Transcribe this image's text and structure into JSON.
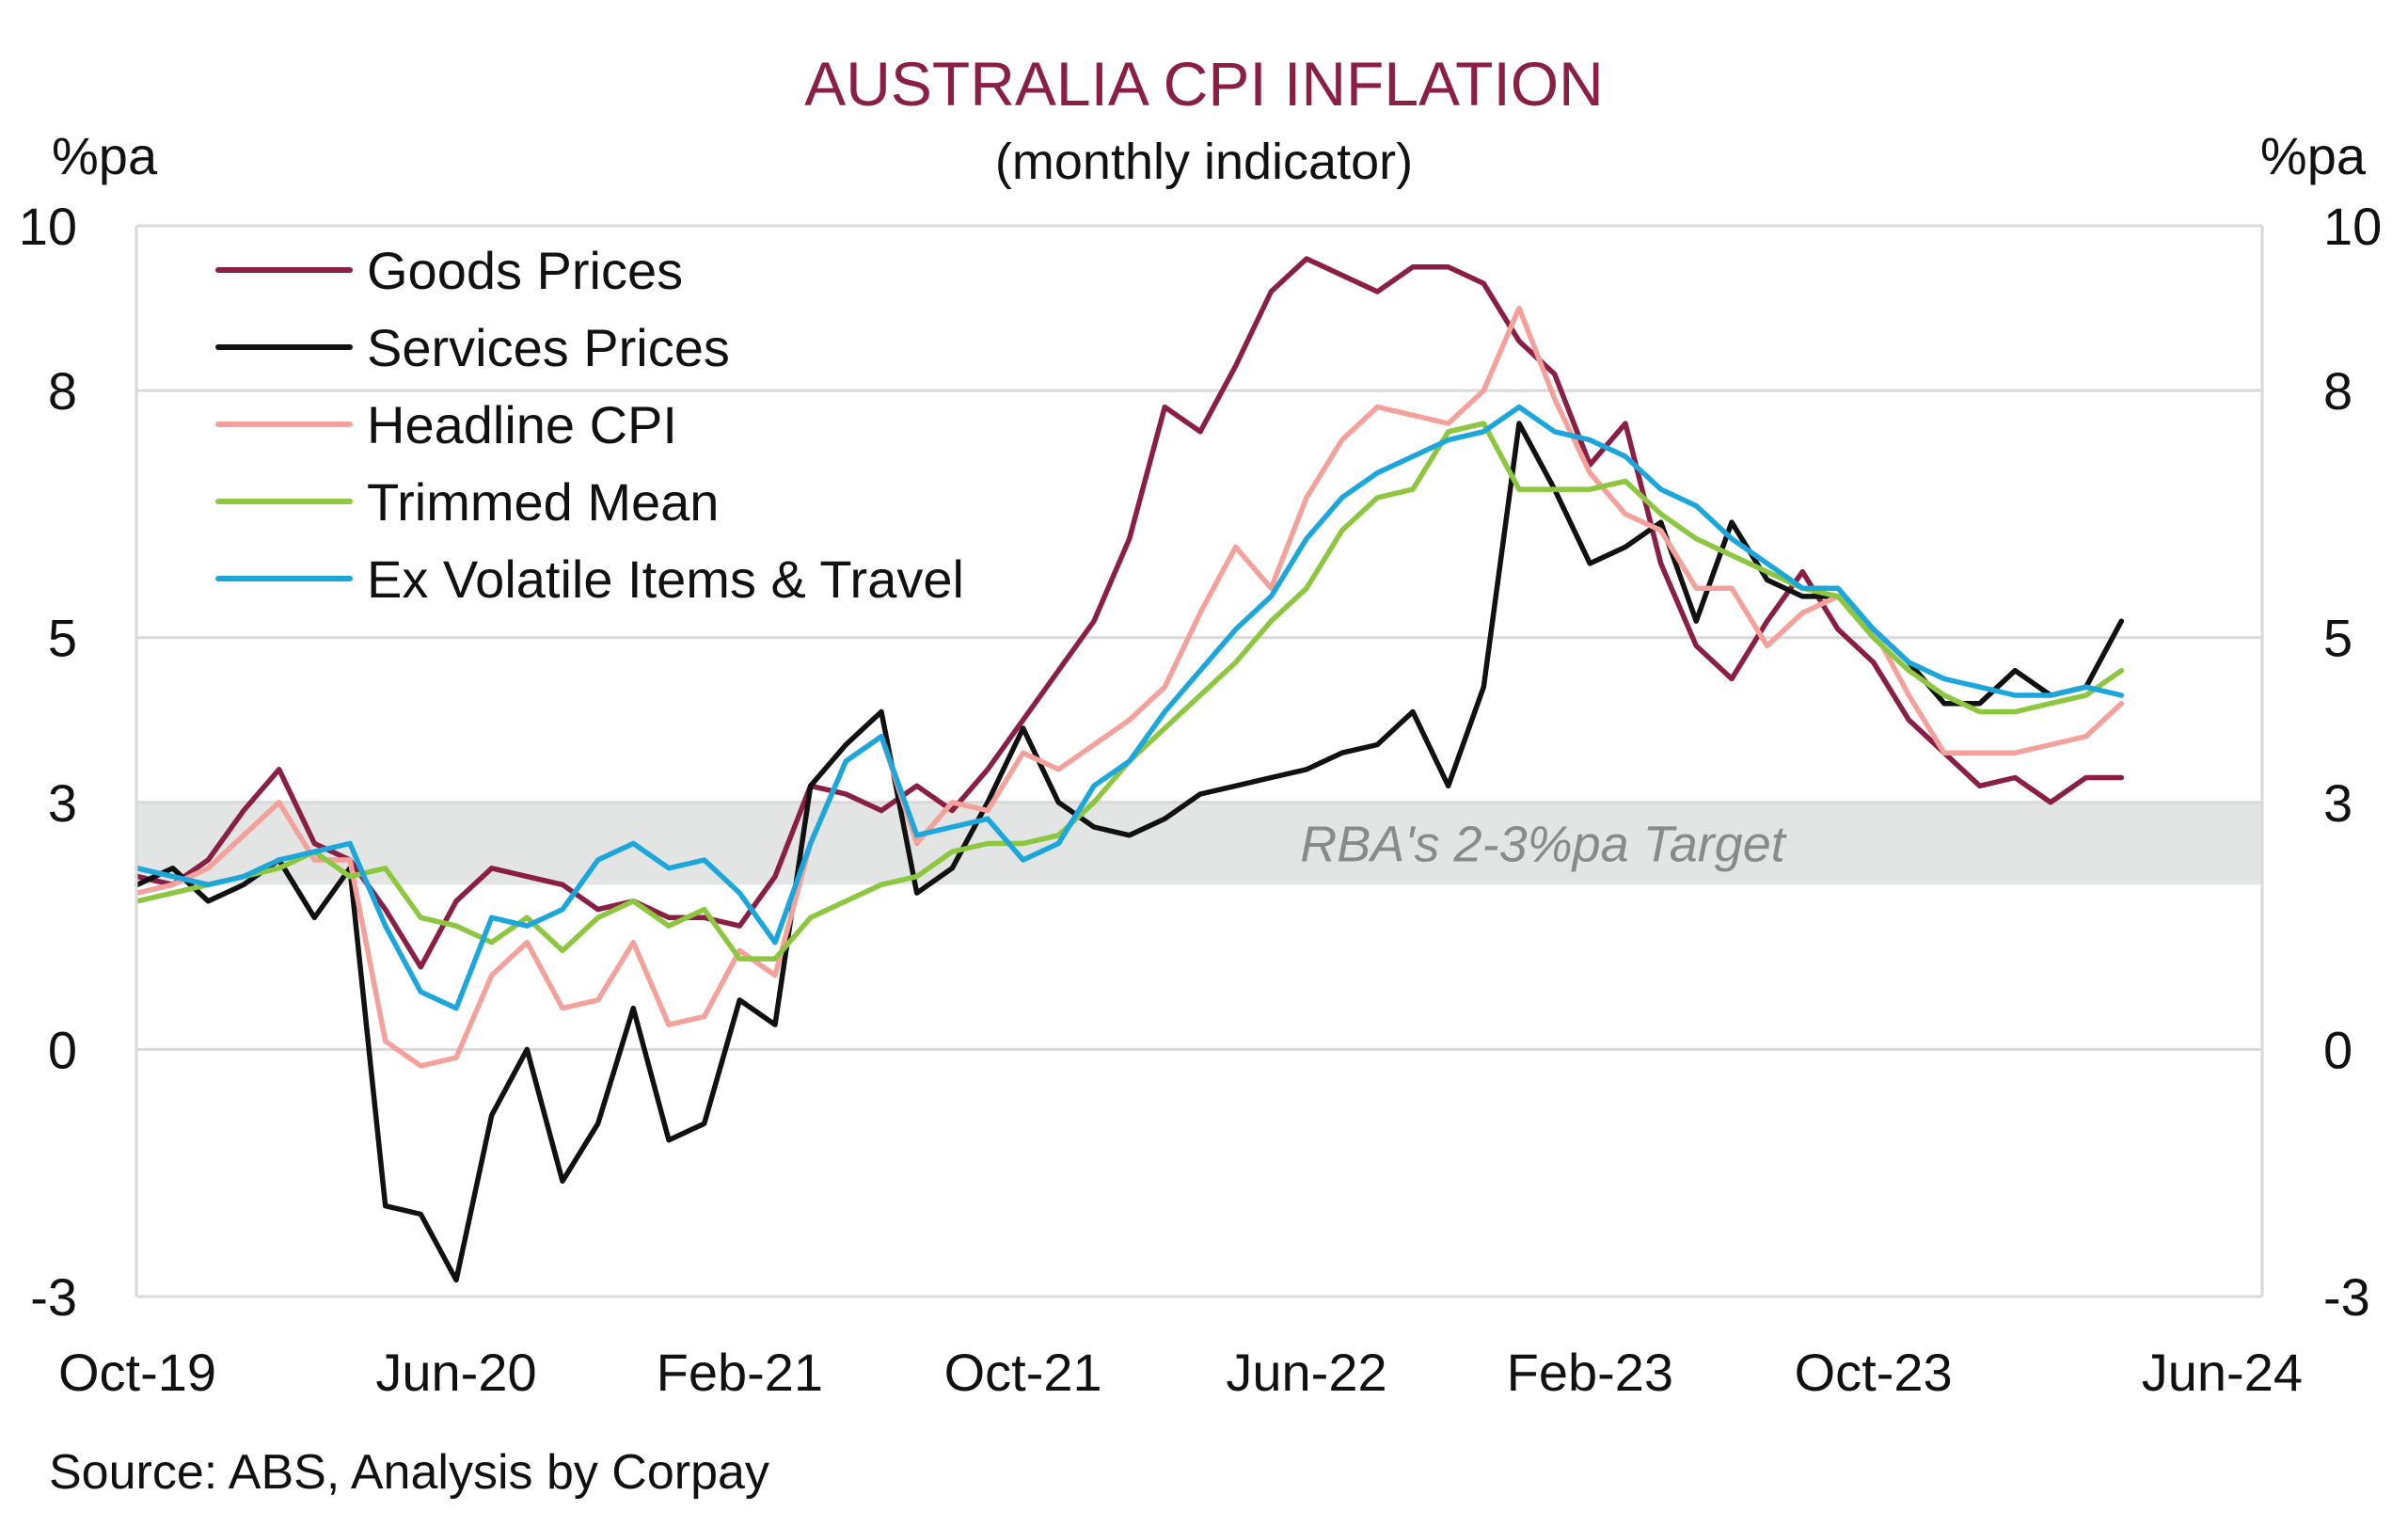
{
  "title": "AUSTRALIA CPI INFLATION",
  "subtitle": "(monthly indicator)",
  "source": "Source: ABS, Analysis by Corpay",
  "chart_data": {
    "type": "line",
    "y_unit_left": "%pa",
    "y_unit_right": "%pa",
    "ylim": [
      -3,
      10
    ],
    "y_ticks": [
      10,
      8,
      5,
      3,
      0,
      -3
    ],
    "x_tick_labels": [
      "Oct-19",
      "Jun-20",
      "Feb-21",
      "Oct-21",
      "Jun-22",
      "Feb-23",
      "Oct-23",
      "Jun-24"
    ],
    "x": [
      "Sep-19",
      "Oct-19",
      "Nov-19",
      "Dec-19",
      "Jan-20",
      "Feb-20",
      "Mar-20",
      "Apr-20",
      "May-20",
      "Jun-20",
      "Jul-20",
      "Aug-20",
      "Sep-20",
      "Oct-20",
      "Nov-20",
      "Dec-20",
      "Jan-21",
      "Feb-21",
      "Mar-21",
      "Apr-21",
      "May-21",
      "Jun-21",
      "Jul-21",
      "Aug-21",
      "Sep-21",
      "Oct-21",
      "Nov-21",
      "Dec-21",
      "Jan-22",
      "Feb-22",
      "Mar-22",
      "Apr-22",
      "May-22",
      "Jun-22",
      "Jul-22",
      "Aug-22",
      "Sep-22",
      "Oct-22",
      "Nov-22",
      "Dec-22",
      "Jan-23",
      "Feb-23",
      "Mar-23",
      "Apr-23",
      "May-23",
      "Jun-23",
      "Jul-23",
      "Aug-23",
      "Sep-23",
      "Oct-23",
      "Nov-23",
      "Dec-23",
      "Jan-24",
      "Feb-24",
      "Mar-24",
      "Apr-24",
      "May-24"
    ],
    "target_band": {
      "from": 2,
      "to": 3,
      "label": "RBA's 2-3%pa Target",
      "color": "#e3e5e4"
    },
    "legend_position": "top-left",
    "grid": "horizontal",
    "series": [
      {
        "name": "Goods Prices",
        "color": "#8b1e45",
        "values": [
          2.1,
          2.0,
          2.3,
          2.9,
          3.4,
          2.5,
          2.3,
          1.7,
          1.0,
          1.8,
          2.2,
          2.1,
          2.0,
          1.7,
          1.8,
          1.6,
          1.6,
          1.5,
          2.1,
          3.2,
          3.1,
          2.9,
          3.2,
          2.9,
          3.4,
          4.0,
          4.6,
          5.2,
          6.2,
          7.8,
          7.5,
          8.3,
          9.2,
          9.6,
          9.4,
          9.2,
          9.5,
          9.5,
          9.3,
          8.6,
          8.2,
          7.1,
          7.6,
          5.9,
          4.9,
          4.5,
          5.2,
          5.8,
          5.1,
          4.7,
          4.0,
          3.6,
          3.2,
          3.3,
          3.0,
          3.3,
          3.3
        ]
      },
      {
        "name": "Services Prices",
        "color": "#111111",
        "values": [
          2.0,
          2.2,
          1.8,
          2.0,
          2.3,
          1.6,
          2.2,
          -1.9,
          -2.0,
          -2.8,
          -0.8,
          0.0,
          -1.6,
          -0.9,
          0.5,
          -1.1,
          -0.9,
          0.6,
          0.3,
          3.2,
          3.7,
          4.1,
          1.9,
          2.2,
          3.0,
          3.9,
          3.0,
          2.7,
          2.6,
          2.8,
          3.1,
          3.2,
          3.3,
          3.4,
          3.6,
          3.7,
          4.1,
          3.2,
          4.4,
          7.6,
          6.8,
          5.9,
          6.1,
          6.4,
          5.2,
          6.4,
          5.7,
          5.5,
          5.5,
          5.1,
          4.7,
          4.2,
          4.2,
          4.6,
          4.3,
          4.4,
          5.2
        ]
      },
      {
        "name": "Headline CPI",
        "color": "#f4a19c",
        "values": [
          1.9,
          2.0,
          2.2,
          2.6,
          3.0,
          2.3,
          2.3,
          0.1,
          -0.2,
          -0.1,
          0.9,
          1.3,
          0.5,
          0.6,
          1.3,
          0.3,
          0.4,
          1.2,
          0.9,
          2.5,
          3.5,
          3.8,
          2.5,
          3.0,
          2.9,
          3.6,
          3.4,
          3.7,
          4.0,
          4.4,
          5.3,
          6.1,
          5.6,
          6.7,
          7.4,
          7.8,
          7.7,
          7.6,
          8.0,
          9.0,
          7.9,
          7.0,
          6.5,
          6.3,
          5.6,
          5.6,
          4.9,
          5.3,
          5.5,
          5.1,
          4.3,
          3.6,
          3.6,
          3.6,
          3.7,
          3.8,
          4.2
        ]
      },
      {
        "name": "Trimmed Mean",
        "color": "#8dc63f",
        "values": [
          1.8,
          1.9,
          2.0,
          2.1,
          2.2,
          2.4,
          2.1,
          2.2,
          1.6,
          1.5,
          1.3,
          1.6,
          1.2,
          1.6,
          1.8,
          1.5,
          1.7,
          1.1,
          1.1,
          1.6,
          1.8,
          2.0,
          2.1,
          2.4,
          2.5,
          2.5,
          2.6,
          3.0,
          3.5,
          3.9,
          4.3,
          4.7,
          5.2,
          5.6,
          6.3,
          6.7,
          6.8,
          7.5,
          7.6,
          6.8,
          6.8,
          6.8,
          6.9,
          6.5,
          6.2,
          6.0,
          5.8,
          5.6,
          5.5,
          5.0,
          4.6,
          4.3,
          4.1,
          4.1,
          4.2,
          4.3,
          4.6
        ]
      },
      {
        "name": "Ex Volatile Items & Travel",
        "color": "#1ba6dc",
        "values": [
          2.2,
          2.1,
          2.0,
          2.1,
          2.3,
          2.4,
          2.5,
          1.5,
          0.7,
          0.5,
          1.6,
          1.5,
          1.7,
          2.3,
          2.5,
          2.2,
          2.3,
          1.9,
          1.3,
          2.5,
          3.5,
          3.8,
          2.6,
          2.7,
          2.8,
          2.3,
          2.5,
          3.2,
          3.5,
          4.1,
          4.6,
          5.1,
          5.5,
          6.2,
          6.7,
          7.0,
          7.2,
          7.4,
          7.5,
          7.8,
          7.5,
          7.4,
          7.2,
          6.8,
          6.6,
          6.2,
          5.9,
          5.6,
          5.6,
          5.1,
          4.7,
          4.5,
          4.4,
          4.3,
          4.3,
          4.4,
          4.3
        ]
      }
    ]
  }
}
